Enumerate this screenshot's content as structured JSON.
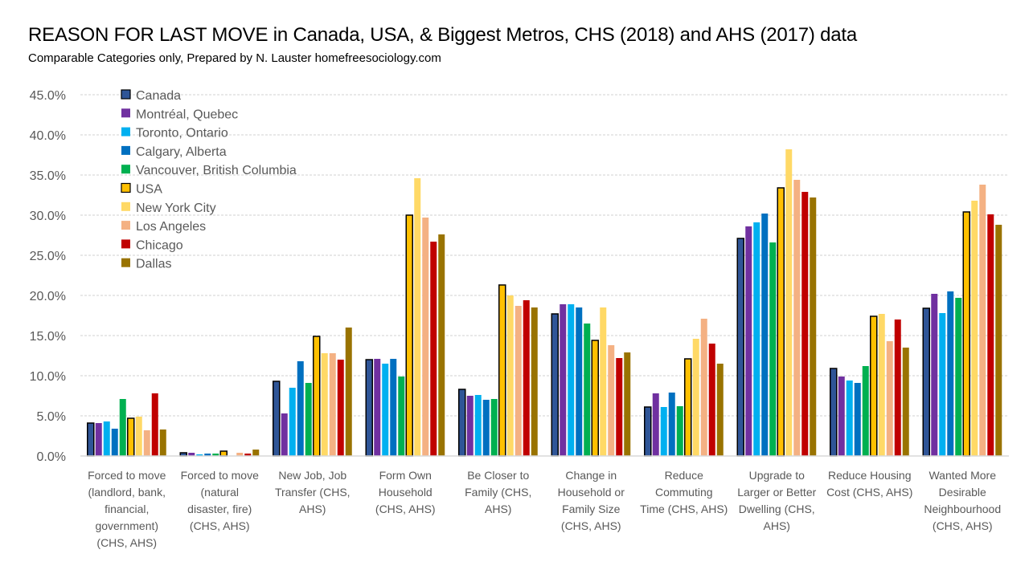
{
  "chart_data": {
    "type": "bar",
    "title": "REASON FOR LAST MOVE in Canada, USA, & Biggest Metros, CHS (2018) and AHS (2017) data",
    "subtitle": "Comparable Categories only, Prepared by N. Lauster  homefreesociology.com",
    "xlabel": "",
    "ylabel": "",
    "ylim": [
      0,
      45
    ],
    "yticks": [
      "0.0%",
      "5.0%",
      "10.0%",
      "15.0%",
      "20.0%",
      "25.0%",
      "30.0%",
      "35.0%",
      "40.0%",
      "45.0%"
    ],
    "ytick_values": [
      0,
      5,
      10,
      15,
      20,
      25,
      30,
      35,
      40,
      45
    ],
    "grid": true,
    "legend_position": "top-left",
    "categories": [
      [
        "Forced to move",
        "(landlord, bank,",
        "financial,",
        "government)",
        "(CHS, AHS)"
      ],
      [
        "Forced to move",
        "(natural",
        "disaster, fire)",
        "(CHS, AHS)"
      ],
      [
        "New Job, Job",
        "Transfer (CHS,",
        "AHS)"
      ],
      [
        "Form Own",
        "Household",
        "(CHS, AHS)"
      ],
      [
        "Be Closer to",
        "Family (CHS,",
        "AHS)"
      ],
      [
        "Change in",
        "Household or",
        "Family Size",
        "(CHS, AHS)"
      ],
      [
        "Reduce",
        "Commuting",
        "Time (CHS, AHS)"
      ],
      [
        "Upgrade to",
        "Larger or Better",
        "Dwelling (CHS,",
        "AHS)"
      ],
      [
        "Reduce Housing",
        "Cost (CHS, AHS)"
      ],
      [
        "Wanted More",
        "Desirable",
        "Neighbourhood",
        "(CHS, AHS)"
      ]
    ],
    "series": [
      {
        "name": "Canada",
        "color": "#2F5597",
        "outlined": true,
        "values": [
          4.1,
          0.4,
          9.3,
          12.0,
          8.3,
          17.7,
          6.1,
          27.1,
          10.9,
          18.4
        ]
      },
      {
        "name": "Montréal, Quebec",
        "color": "#7030A0",
        "outlined": false,
        "values": [
          4.1,
          0.4,
          5.3,
          12.1,
          7.5,
          18.9,
          7.8,
          28.6,
          9.9,
          20.2
        ]
      },
      {
        "name": "Toronto, Ontario",
        "color": "#00B0F0",
        "outlined": false,
        "values": [
          4.3,
          0.2,
          8.5,
          11.5,
          7.6,
          18.9,
          6.1,
          29.1,
          9.4,
          17.8
        ]
      },
      {
        "name": "Calgary, Alberta",
        "color": "#0070C0",
        "outlined": false,
        "values": [
          3.4,
          0.3,
          11.8,
          12.1,
          7.0,
          18.5,
          7.9,
          30.2,
          9.1,
          20.5
        ]
      },
      {
        "name": "Vancouver, British Columbia",
        "color": "#00B050",
        "outlined": false,
        "values": [
          7.1,
          0.3,
          9.1,
          9.9,
          7.1,
          16.5,
          6.2,
          26.6,
          11.2,
          19.7
        ]
      },
      {
        "name": "USA",
        "color": "#FFC000",
        "outlined": true,
        "values": [
          4.7,
          0.6,
          14.9,
          30.0,
          21.3,
          14.4,
          12.1,
          33.4,
          17.4,
          30.4
        ]
      },
      {
        "name": "New York City",
        "color": "#FFD966",
        "outlined": false,
        "values": [
          4.9,
          0.0,
          12.8,
          34.6,
          20.0,
          18.5,
          14.6,
          38.2,
          17.7,
          31.8
        ]
      },
      {
        "name": "Los Angeles",
        "color": "#F4B183",
        "outlined": false,
        "values": [
          3.2,
          0.4,
          12.8,
          29.7,
          18.7,
          13.8,
          17.1,
          34.4,
          14.3,
          33.8
        ]
      },
      {
        "name": "Chicago",
        "color": "#C00000",
        "outlined": false,
        "values": [
          7.8,
          0.3,
          12.0,
          26.7,
          19.4,
          12.2,
          14.0,
          32.9,
          17.0,
          30.1
        ]
      },
      {
        "name": "Dallas",
        "color": "#997300",
        "outlined": false,
        "values": [
          3.3,
          0.8,
          16.0,
          27.6,
          18.5,
          12.9,
          11.5,
          32.2,
          13.5,
          28.8
        ]
      }
    ]
  }
}
